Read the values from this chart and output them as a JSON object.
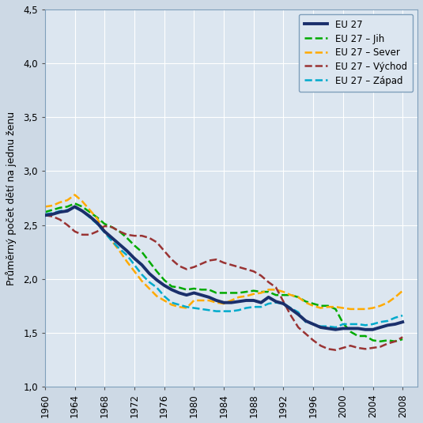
{
  "title": "",
  "ylabel": "Průměrný počet dětí na jednu ženu",
  "xlabel": "",
  "background_color": "#cdd9e5",
  "plot_background_color": "#dce6f0",
  "grid_color": "#ffffff",
  "xlim": [
    1960,
    2010
  ],
  "ylim": [
    1.0,
    4.5
  ],
  "yticks": [
    1.0,
    1.5,
    2.0,
    2.5,
    3.0,
    3.5,
    4.0,
    4.5
  ],
  "xticks": [
    1960,
    1964,
    1968,
    1972,
    1976,
    1980,
    1984,
    1988,
    1992,
    1996,
    2000,
    2004,
    2008
  ],
  "series": {
    "EU27": {
      "color": "#1a2f6b",
      "linewidth": 2.8,
      "linestyle": "solid",
      "years": [
        1960,
        1961,
        1962,
        1963,
        1964,
        1965,
        1966,
        1967,
        1968,
        1969,
        1970,
        1971,
        1972,
        1973,
        1974,
        1975,
        1976,
        1977,
        1978,
        1979,
        1980,
        1981,
        1982,
        1983,
        1984,
        1985,
        1986,
        1987,
        1988,
        1989,
        1990,
        1991,
        1992,
        1993,
        1994,
        1995,
        1996,
        1997,
        1998,
        1999,
        2000,
        2001,
        2002,
        2003,
        2004,
        2005,
        2006,
        2007,
        2008
      ],
      "values": [
        2.59,
        2.6,
        2.62,
        2.63,
        2.67,
        2.63,
        2.58,
        2.52,
        2.44,
        2.38,
        2.32,
        2.26,
        2.19,
        2.13,
        2.05,
        1.99,
        1.94,
        1.9,
        1.87,
        1.85,
        1.87,
        1.85,
        1.83,
        1.8,
        1.78,
        1.78,
        1.79,
        1.8,
        1.8,
        1.78,
        1.83,
        1.79,
        1.77,
        1.72,
        1.67,
        1.61,
        1.58,
        1.55,
        1.54,
        1.53,
        1.54,
        1.54,
        1.54,
        1.53,
        1.53,
        1.55,
        1.57,
        1.58,
        1.6
      ]
    },
    "EU27_Jih": {
      "color": "#00aa00",
      "linewidth": 1.8,
      "linestyle": "dashed",
      "years": [
        1960,
        1961,
        1962,
        1963,
        1964,
        1965,
        1966,
        1967,
        1968,
        1969,
        1970,
        1971,
        1972,
        1973,
        1974,
        1975,
        1976,
        1977,
        1978,
        1979,
        1980,
        1981,
        1982,
        1983,
        1984,
        1985,
        1986,
        1987,
        1988,
        1989,
        1990,
        1991,
        1992,
        1993,
        1994,
        1995,
        1996,
        1997,
        1998,
        1999,
        2000,
        2001,
        2002,
        2003,
        2004,
        2005,
        2006,
        2007,
        2008
      ],
      "values": [
        2.62,
        2.64,
        2.66,
        2.67,
        2.7,
        2.67,
        2.62,
        2.57,
        2.51,
        2.48,
        2.44,
        2.38,
        2.31,
        2.25,
        2.16,
        2.07,
        1.99,
        1.93,
        1.92,
        1.9,
        1.91,
        1.9,
        1.9,
        1.87,
        1.87,
        1.87,
        1.87,
        1.88,
        1.89,
        1.88,
        1.88,
        1.85,
        1.85,
        1.85,
        1.83,
        1.79,
        1.77,
        1.75,
        1.75,
        1.72,
        1.59,
        1.51,
        1.47,
        1.47,
        1.43,
        1.42,
        1.43,
        1.42,
        1.44
      ]
    },
    "EU27_Sever": {
      "color": "#ffaa00",
      "linewidth": 1.8,
      "linestyle": "dashed",
      "years": [
        1960,
        1961,
        1962,
        1963,
        1964,
        1965,
        1966,
        1967,
        1968,
        1969,
        1970,
        1971,
        1972,
        1973,
        1974,
        1975,
        1976,
        1977,
        1978,
        1979,
        1980,
        1981,
        1982,
        1983,
        1984,
        1985,
        1986,
        1987,
        1988,
        1989,
        1990,
        1991,
        1992,
        1993,
        1994,
        1995,
        1996,
        1997,
        1998,
        1999,
        2000,
        2001,
        2002,
        2003,
        2004,
        2005,
        2006,
        2007,
        2008
      ],
      "values": [
        2.67,
        2.68,
        2.71,
        2.73,
        2.78,
        2.72,
        2.64,
        2.56,
        2.44,
        2.35,
        2.26,
        2.16,
        2.07,
        1.98,
        1.91,
        1.84,
        1.8,
        1.76,
        1.74,
        1.73,
        1.8,
        1.8,
        1.8,
        1.78,
        1.77,
        1.8,
        1.83,
        1.84,
        1.86,
        1.87,
        1.9,
        1.9,
        1.88,
        1.85,
        1.83,
        1.78,
        1.75,
        1.73,
        1.74,
        1.74,
        1.73,
        1.72,
        1.72,
        1.72,
        1.73,
        1.75,
        1.78,
        1.83,
        1.89
      ]
    },
    "EU27_Vychod": {
      "color": "#993333",
      "linewidth": 1.8,
      "linestyle": "dashed",
      "years": [
        1960,
        1961,
        1962,
        1963,
        1964,
        1965,
        1966,
        1967,
        1968,
        1969,
        1970,
        1971,
        1972,
        1973,
        1974,
        1975,
        1976,
        1977,
        1978,
        1979,
        1980,
        1981,
        1982,
        1983,
        1984,
        1985,
        1986,
        1987,
        1988,
        1989,
        1990,
        1991,
        1992,
        1993,
        1994,
        1995,
        1996,
        1997,
        1998,
        1999,
        2000,
        2001,
        2002,
        2003,
        2004,
        2005,
        2006,
        2007,
        2008
      ],
      "values": [
        2.59,
        2.58,
        2.55,
        2.5,
        2.44,
        2.41,
        2.41,
        2.44,
        2.49,
        2.48,
        2.44,
        2.41,
        2.4,
        2.4,
        2.38,
        2.34,
        2.26,
        2.18,
        2.12,
        2.09,
        2.11,
        2.14,
        2.17,
        2.18,
        2.15,
        2.13,
        2.11,
        2.09,
        2.07,
        2.03,
        1.97,
        1.92,
        1.79,
        1.66,
        1.55,
        1.49,
        1.43,
        1.38,
        1.35,
        1.34,
        1.36,
        1.38,
        1.36,
        1.35,
        1.36,
        1.37,
        1.4,
        1.42,
        1.46
      ]
    },
    "EU27_Zapad": {
      "color": "#00aacc",
      "linewidth": 1.8,
      "linestyle": "dashed",
      "years": [
        1960,
        1961,
        1962,
        1963,
        1964,
        1965,
        1966,
        1967,
        1968,
        1969,
        1970,
        1971,
        1972,
        1973,
        1974,
        1975,
        1976,
        1977,
        1978,
        1979,
        1980,
        1981,
        1982,
        1983,
        1984,
        1985,
        1986,
        1987,
        1988,
        1989,
        1990,
        1991,
        1992,
        1993,
        1994,
        1995,
        1996,
        1997,
        1998,
        1999,
        2000,
        2001,
        2002,
        2003,
        2004,
        2005,
        2006,
        2007,
        2008
      ],
      "values": [
        2.6,
        2.61,
        2.63,
        2.64,
        2.66,
        2.63,
        2.57,
        2.51,
        2.43,
        2.35,
        2.28,
        2.22,
        2.13,
        2.04,
        1.97,
        1.92,
        1.84,
        1.78,
        1.76,
        1.74,
        1.73,
        1.72,
        1.71,
        1.7,
        1.7,
        1.7,
        1.71,
        1.73,
        1.74,
        1.74,
        1.77,
        1.78,
        1.77,
        1.73,
        1.69,
        1.6,
        1.58,
        1.56,
        1.56,
        1.55,
        1.58,
        1.58,
        1.58,
        1.57,
        1.58,
        1.6,
        1.61,
        1.64,
        1.66
      ]
    }
  },
  "legend": {
    "EU27": "EU 27",
    "EU27_Jih": "EU 27 – Jih",
    "EU27_Sever": "EU 27 – Sever",
    "EU27_Vychod": "EU 27 – Východ",
    "EU27_Zapad": "EU 27 – Západ"
  }
}
